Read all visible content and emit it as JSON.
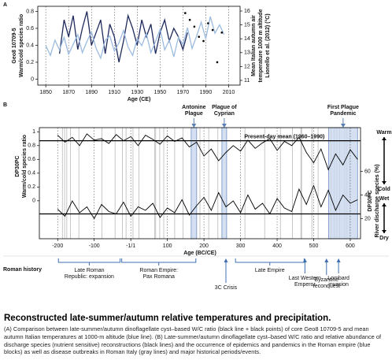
{
  "chart_data": [
    {
      "panel": "A",
      "type": "line",
      "xlabel": "Age (CE)",
      "ylabel": [
        "Geo8 10709-5",
        "Warm/cold species ratio"
      ],
      "y2label": [
        "Mean Italian autumn air",
        "temperature 1000 m altitude",
        "Lionello et al. (2012) (°C)"
      ],
      "xlim": [
        1843,
        2020
      ],
      "xticks": [
        1850,
        1870,
        1890,
        1910,
        1930,
        1950,
        1970,
        1990,
        2010
      ],
      "ylim": [
        -0.07,
        0.86
      ],
      "yticks": [
        0,
        0.2,
        0.4,
        0.6,
        0.8
      ],
      "y2lim": [
        10.66,
        16.34
      ],
      "y2ticks": [
        11,
        12,
        13,
        14,
        15,
        16
      ],
      "grid": "dotted",
      "series": [
        {
          "color": "#1f2a5c",
          "x": [
            1862,
            1866,
            1870,
            1874,
            1878,
            1882,
            1886,
            1890,
            1894,
            1898,
            1902,
            1906,
            1910,
            1914,
            1918,
            1922,
            1926,
            1930,
            1934,
            1938,
            1942,
            1946,
            1950,
            1954,
            1958,
            1962,
            1966,
            1970,
            1974
          ],
          "values": [
            0.3,
            0.7,
            0.5,
            0.75,
            0.35,
            0.6,
            0.8,
            0.4,
            0.55,
            0.7,
            0.3,
            0.65,
            0.5,
            0.2,
            0.45,
            0.75,
            0.6,
            0.4,
            0.7,
            0.5,
            0.65,
            0.3,
            0.55,
            0.7,
            0.45,
            0.6,
            0.5,
            0.35,
            0.55
          ]
        },
        {
          "color": "#9bbbe0",
          "axis": "y2",
          "x": [
            1850,
            1854,
            1858,
            1862,
            1866,
            1870,
            1874,
            1878,
            1882,
            1886,
            1890,
            1894,
            1898,
            1902,
            1906,
            1910,
            1914,
            1918,
            1922,
            1926,
            1930,
            1934,
            1938,
            1942,
            1946,
            1950,
            1954,
            1958,
            1962,
            1966,
            1970,
            1974,
            1978,
            1982,
            1986,
            1990,
            1994,
            1998,
            2002,
            2006
          ],
          "values": [
            13.5,
            12.8,
            13.9,
            13.2,
            14.1,
            12.9,
            13.6,
            14.3,
            13.0,
            13.8,
            14.5,
            13.3,
            12.6,
            13.9,
            14.2,
            13.1,
            13.7,
            14.6,
            13.4,
            12.8,
            14.0,
            13.5,
            14.4,
            13.0,
            13.8,
            14.7,
            13.2,
            13.9,
            12.7,
            14.1,
            13.6,
            14.8,
            13.3,
            14.2,
            15.2,
            14.0,
            15.6,
            14.4,
            15.0,
            14.3
          ]
        },
        {
          "color": "#000000",
          "marker": "point",
          "x": [
            1972,
            1976,
            1980,
            1984,
            1988,
            1992,
            1996,
            2000,
            2004
          ],
          "values": [
            0.78,
            0.7,
            0.62,
            0.5,
            0.45,
            0.66,
            0.58,
            0.2,
            0.55
          ]
        }
      ]
    },
    {
      "panel": "B",
      "type": "line",
      "xlabel": "Age (BC/CE)",
      "ylabel": [
        "DP30PC",
        "Warm/cold species ratio"
      ],
      "y2label": [
        "DP30PC",
        "River discharge species (%)"
      ],
      "xlim": [
        -250,
        628
      ],
      "xticks": [
        -200,
        -100,
        {
          "value": 0,
          "label": "-1/1"
        },
        100,
        200,
        300,
        400,
        500,
        600
      ],
      "ylim": [
        -0.55,
        1.06
      ],
      "yticks": [
        0,
        0.2,
        0.4,
        0.6,
        0.8,
        1
      ],
      "y2lim": [
        3,
        97
      ],
      "y2ticks": [
        20,
        40,
        60
      ],
      "grid": "dotted",
      "series": [
        {
          "color": "#000000",
          "x": [
            -200,
            -180,
            -160,
            -140,
            -120,
            -100,
            -80,
            -60,
            -40,
            -20,
            0,
            20,
            40,
            60,
            80,
            100,
            120,
            140,
            160,
            180,
            200,
            220,
            240,
            260,
            280,
            300,
            320,
            340,
            360,
            380,
            400,
            420,
            440,
            460,
            480,
            500,
            520,
            540,
            560,
            580,
            600,
            620
          ],
          "values": [
            0.95,
            0.85,
            0.92,
            0.8,
            0.97,
            0.88,
            0.9,
            0.83,
            0.96,
            0.87,
            0.93,
            0.8,
            0.95,
            0.89,
            0.82,
            0.94,
            0.86,
            0.91,
            0.78,
            0.85,
            0.65,
            0.75,
            0.58,
            0.7,
            0.8,
            0.72,
            0.88,
            0.76,
            0.84,
            0.9,
            0.73,
            0.86,
            0.8,
            0.92,
            0.7,
            0.55,
            0.75,
            0.45,
            0.68,
            0.52,
            0.74,
            0.6
          ]
        },
        {
          "color": "#000000",
          "axis": "y2",
          "x": [
            -200,
            -180,
            -160,
            -140,
            -120,
            -100,
            -80,
            -60,
            -40,
            -20,
            0,
            20,
            40,
            60,
            80,
            100,
            120,
            140,
            160,
            180,
            200,
            220,
            240,
            260,
            280,
            300,
            320,
            340,
            360,
            380,
            400,
            420,
            440,
            460,
            480,
            500,
            520,
            540,
            560,
            580,
            600,
            620
          ],
          "values": [
            28,
            22,
            35,
            25,
            30,
            20,
            32,
            26,
            24,
            34,
            22,
            30,
            27,
            33,
            21,
            29,
            25,
            36,
            23,
            31,
            38,
            27,
            42,
            30,
            35,
            25,
            40,
            28,
            33,
            24,
            37,
            29,
            26,
            45,
            32,
            48,
            30,
            44,
            27,
            40,
            33,
            36
          ]
        }
      ],
      "reference_lines": [
        {
          "value": 0.87,
          "label": "Present-day mean (1960–1990)"
        },
        {
          "value": 24,
          "axis": "y2"
        }
      ],
      "plague_blocks": [
        {
          "label": [
            "Antonine",
            "Plague"
          ],
          "start": 165,
          "end": 180
        },
        {
          "label": [
            "Plague of",
            "Cyprian"
          ],
          "start": 249,
          "end": 262
        },
        {
          "label": [
            "First Plague",
            "Pandemic"
          ],
          "start": 541,
          "end": 620
        }
      ],
      "outbreaks": [
        -187,
        -181,
        -175,
        -165,
        -142,
        -79,
        -43,
        -23,
        -13,
        6,
        22,
        65,
        68,
        79,
        90,
        120,
        143,
        189,
        213,
        238,
        312,
        366,
        409,
        442,
        465,
        467,
        495,
        512,
        547,
        556,
        563,
        571,
        585,
        591,
        599
      ],
      "climate_labels": {
        "warm": "Warm",
        "cold": "Cold",
        "wet": "Wet",
        "dry": "Dry"
      },
      "history_label": "Roman history",
      "periods": [
        {
          "label": [
            "Late Roman",
            "Republic: expansion"
          ],
          "start": -200,
          "end": -27
        },
        {
          "label": [
            "Roman Empire:",
            "Pax Romana"
          ],
          "start": -27,
          "end": 180
        },
        {
          "label": [
            "Late Empire"
          ],
          "start": 284,
          "end": 476
        }
      ],
      "events": [
        {
          "label": [
            "3C Crisis"
          ],
          "year": 260
        },
        {
          "label": [
            "Last Western",
            "Emperor"
          ],
          "year": 476
        },
        {
          "label": [
            "Byzantine",
            "reconquest"
          ],
          "year": 535
        },
        {
          "label": [
            "Lombard",
            "invasion"
          ],
          "year": 568
        }
      ]
    }
  ],
  "caption": {
    "title": "Reconstructed late-summer/autumn relative temperatures and precipitation.",
    "text": "(A) Comparison between late-summer/autumn dinoflagellate cyst–based W/C ratio (black line + black points) of core Geo8 10709-5 and mean autumn Italian temperatures at 1000-m altitude (blue line). (B) Late-summer/autumn dinoflagellate cyst–based W/C ratio and relative abundance of discharge species (nutrient sensitive) reconstructions (black lines) and the occurrence of epidemics and pandemics in the Roman empire (blue blocks) as well as disease outbreaks in Roman Italy (gray lines) and major historical periods/events."
  }
}
